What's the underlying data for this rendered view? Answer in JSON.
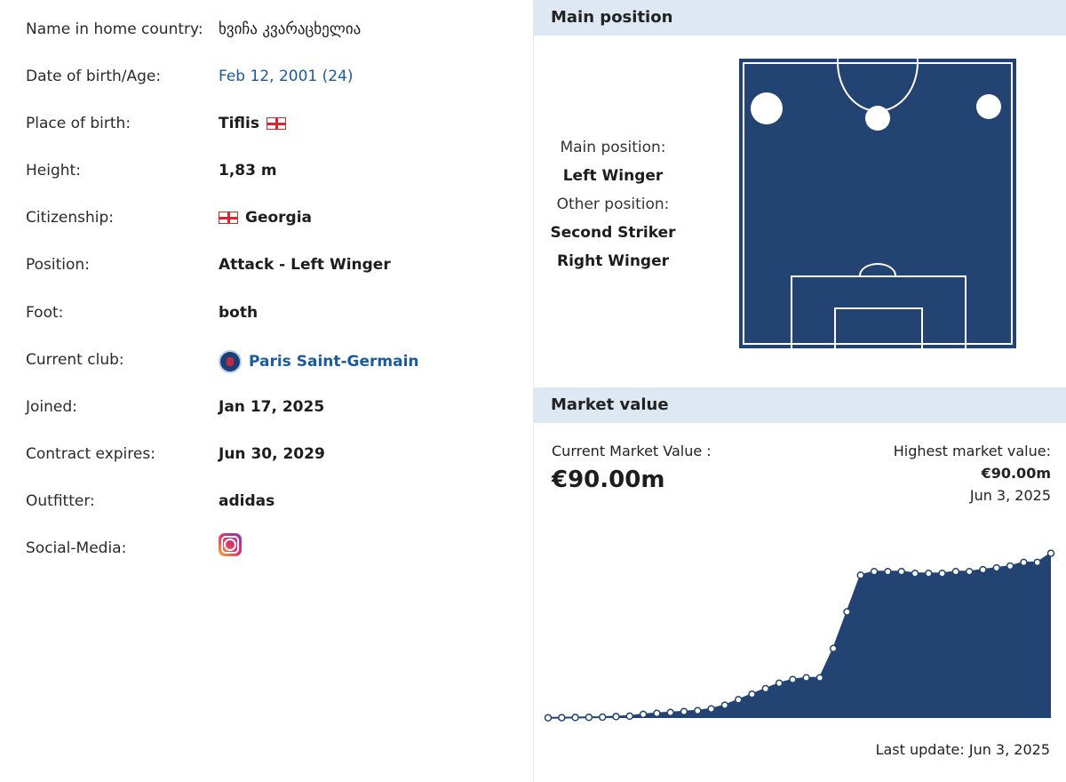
{
  "info": {
    "rows": [
      {
        "label": "Name in home country:",
        "value": "ხვიჩა კვარაცხელია"
      },
      {
        "label": "Date of birth/Age:",
        "value": "Feb 12, 2001 (24)"
      },
      {
        "label": "Place of birth:",
        "value": "Tiflis"
      },
      {
        "label": "Height:",
        "value": "1,83 m"
      },
      {
        "label": "Citizenship:",
        "value": "Georgia"
      },
      {
        "label": "Position:",
        "value": "Attack - Left Winger"
      },
      {
        "label": "Foot:",
        "value": "both"
      },
      {
        "label": "Current club:",
        "value": "Paris Saint-Germain"
      },
      {
        "label": "Joined:",
        "value": "Jan 17, 2025"
      },
      {
        "label": "Contract expires:",
        "value": "Jun 30, 2029"
      },
      {
        "label": "Outfitter:",
        "value": "adidas"
      },
      {
        "label": "Social-Media:",
        "value": ""
      }
    ],
    "icons": {
      "flag": "georgia-flag-icon",
      "club": "psg-crest-icon",
      "social": "instagram-icon"
    }
  },
  "main_position": {
    "header": "Main position",
    "main_label": "Main position:",
    "main_value": "Left Winger",
    "other_label": "Other position:",
    "other_values": [
      "Second Striker",
      "Right Winger"
    ]
  },
  "market_value": {
    "header": "Market value",
    "current_label": "Current Market Value :",
    "current_value": "€90.00m",
    "highest_label": "Highest market value:",
    "highest_value": "€90.00m",
    "highest_date": "Jun 3, 2025",
    "last_update": "Last update: Jun 3, 2025"
  },
  "chart_data": {
    "type": "area",
    "title": "",
    "xlabel": "",
    "ylabel": "",
    "ylim": [
      0,
      100
    ],
    "series": [
      {
        "values": [
          0.1,
          0.2,
          0.3,
          0.4,
          0.5,
          0.8,
          1,
          2,
          2.5,
          3,
          3.5,
          4,
          5,
          7,
          10,
          13,
          16,
          19,
          21,
          22,
          22,
          38,
          58,
          78,
          80,
          80,
          80,
          79,
          79,
          79,
          80,
          80,
          81,
          82,
          83,
          85,
          85,
          90
        ]
      }
    ],
    "colors": {
      "fill": "#234373",
      "point": "#ffffff"
    }
  }
}
